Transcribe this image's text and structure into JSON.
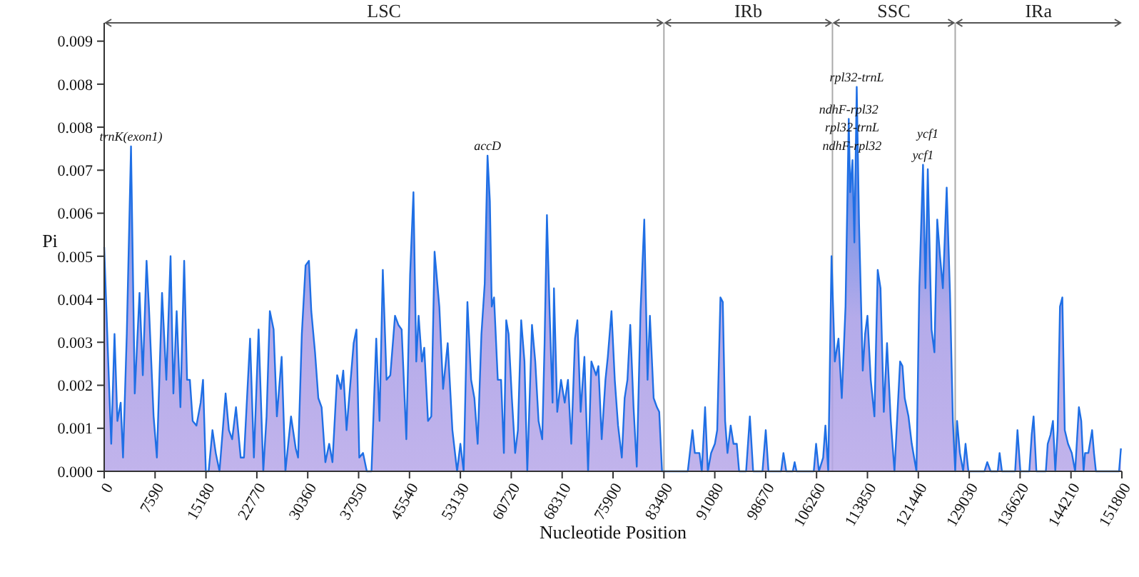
{
  "chart_data": {
    "type": "area",
    "xlabel": "Nucleotide Position",
    "ylabel": "Pi",
    "xlim": [
      0,
      151800
    ],
    "ylim": [
      0,
      0.0098
    ],
    "xticks": [
      0,
      7590,
      15180,
      22770,
      30360,
      37950,
      45540,
      53130,
      60720,
      68310,
      75900,
      83490,
      91080,
      98670,
      106260,
      113850,
      121440,
      129030,
      136620,
      144210,
      151800
    ],
    "yticks": [
      {
        "value": 0,
        "label": "0.000"
      },
      {
        "value": 0.00094,
        "label": "0.001"
      },
      {
        "value": 0.00188,
        "label": "0.002"
      },
      {
        "value": 0.00282,
        "label": "0.003"
      },
      {
        "value": 0.00376,
        "label": "0.004"
      },
      {
        "value": 0.0047,
        "label": "0.005"
      },
      {
        "value": 0.00564,
        "label": "0.006"
      },
      {
        "value": 0.00658,
        "label": "0.007"
      },
      {
        "value": 0.00752,
        "label": "0.008"
      },
      {
        "value": 0.00846,
        "label": "0.008"
      },
      {
        "value": 0.0094,
        "label": "0.009"
      }
    ],
    "grid": false,
    "ref_lines": [
      {
        "axis": "x",
        "value": 83490,
        "color": "#aaaaaa"
      },
      {
        "axis": "x",
        "value": 108630,
        "color": "#aaaaaa"
      },
      {
        "axis": "x",
        "value": 126940,
        "color": "#aaaaaa"
      }
    ],
    "annotations": [
      "LSC",
      "IRb",
      "SSC",
      "IRa",
      {
        "text": "trnK(exon1)",
        "x": 4000,
        "y": 0.0071
      },
      {
        "text": "accD",
        "x": 57180,
        "y": 0.0069
      },
      {
        "text": "rpl32-trnL",
        "x": 112250,
        "y": 0.0084
      },
      {
        "text": "ndhF-rpl32",
        "x": 111060,
        "y": 0.0077
      },
      {
        "text": "rpl32-trnL",
        "x": 111550,
        "y": 0.0073
      },
      {
        "text": "ndhF-rpl32",
        "x": 111550,
        "y": 0.0069
      },
      {
        "text": "ycf1",
        "x": 122140,
        "y": 0.0067
      },
      {
        "text": "ycf1",
        "x": 122850,
        "y": 0.0066
      }
    ],
    "series": [
      {
        "color": "#1f6fe5",
        "x": [
          0,
          700,
          1050,
          1540,
          1970,
          2460,
          2810,
          3370,
          4000,
          4560,
          5270,
          5760,
          6320,
          6670,
          7370,
          7860,
          8630,
          9270,
          9900,
          10320,
          10810,
          11370,
          11930,
          12360,
          12780,
          13200,
          13760,
          14390,
          14740,
          15160,
          15580,
          16150,
          16640,
          17200,
          18110,
          18600,
          19090,
          19660,
          20360,
          20850,
          21760,
          22330,
          23030,
          23730,
          24220,
          24710,
          25270,
          25760,
          26470,
          27030,
          27870,
          28570,
          28920,
          29480,
          30040,
          30540,
          30890,
          31450,
          31940,
          32430,
          32990,
          33560,
          34050,
          34750,
          35310,
          35660,
          36150,
          37210,
          37630,
          38050,
          38610,
          39170,
          39870,
          40580,
          41070,
          41560,
          42120,
          42680,
          43380,
          43880,
          44370,
          45070,
          45630,
          46130,
          46550,
          46900,
          47390,
          47740,
          48300,
          48790,
          49280,
          49990,
          50550,
          51240,
          51940,
          52640,
          53130,
          53620,
          54180,
          54730,
          55220,
          55710,
          56270,
          56760,
          57180,
          57530,
          57810,
          58150,
          58710,
          59200,
          59620,
          59970,
          60320,
          60810,
          61300,
          61710,
          62200,
          62690,
          63110,
          63810,
          64300,
          64790,
          65340,
          65690,
          66040,
          66460,
          66880,
          67090,
          67580,
          68140,
          68690,
          69180,
          69670,
          70230,
          70580,
          71070,
          71630,
          72180,
          72670,
          73370,
          73720,
          74210,
          74770,
          75120,
          75670,
          76160,
          76650,
          77210,
          77630,
          78050,
          78470,
          78960,
          79440,
          80000,
          80560,
          81050,
          81400,
          81960,
          82450,
          82790,
          83210,
          83490,
          87050,
          87750,
          88100,
          88790,
          89140,
          89630,
          90040,
          90530,
          91090,
          91440,
          91920,
          92270,
          92620,
          92970,
          93450,
          93870,
          94360,
          94710,
          95750,
          96310,
          96800,
          98190,
          98680,
          99090,
          100970,
          101320,
          101740,
          102710,
          102990,
          103270,
          105840,
          106190,
          106610,
          107240,
          107580,
          108000,
          108490,
          108980,
          109530,
          110020,
          110580,
          111060,
          111270,
          111620,
          111900,
          112250,
          112600,
          113150,
          113500,
          113850,
          114340,
          114890,
          115380,
          115800,
          116290,
          116770,
          117330,
          117880,
          118720,
          119070,
          119410,
          119970,
          120460,
          121160,
          121580,
          122140,
          122500,
          122850,
          123410,
          123840,
          124260,
          124680,
          125100,
          125670,
          126160,
          126590,
          126940,
          127220,
          127640,
          128130,
          128480,
          128910,
          131300,
          131720,
          132220,
          133280,
          133560,
          133910,
          135880,
          136230,
          136660,
          137990,
          138350,
          138630,
          139050,
          140460,
          140740,
          141160,
          141520,
          141870,
          142220,
          142570,
          142920,
          143280,
          143770,
          144330,
          144830,
          145390,
          145740,
          146090,
          146310,
          146800,
          147360,
          147640,
          147930,
          151380,
          151660
        ],
        "values": [
          0.0049,
          0.002,
          0.0006,
          0.003,
          0.0011,
          0.0015,
          0.0003,
          0.003,
          0.0071,
          0.0017,
          0.0039,
          0.0021,
          0.0046,
          0.0036,
          0.0012,
          0.0003,
          0.0039,
          0.002,
          0.0047,
          0.0017,
          0.0035,
          0.0014,
          0.0046,
          0.002,
          0.002,
          0.0011,
          0.001,
          0.0015,
          0.002,
          0,
          0,
          0.0009,
          0.0004,
          0,
          0.0017,
          0.0009,
          0.0007,
          0.0014,
          0.0003,
          0.0003,
          0.0029,
          0.0003,
          0.0031,
          0,
          0.0012,
          0.0035,
          0.0031,
          0.0012,
          0.0025,
          0,
          0.0012,
          0.0005,
          0.0003,
          0.003,
          0.0045,
          0.0046,
          0.0035,
          0.0026,
          0.0016,
          0.0014,
          0.0002,
          0.0006,
          0.0002,
          0.0021,
          0.0018,
          0.0022,
          0.0009,
          0.0028,
          0.0031,
          0.0003,
          0.0004,
          0,
          0,
          0.0029,
          0.0011,
          0.0044,
          0.002,
          0.0021,
          0.0034,
          0.0032,
          0.0031,
          0.0007,
          0.0043,
          0.0061,
          0.0024,
          0.0034,
          0.0024,
          0.0027,
          0.0011,
          0.0012,
          0.0048,
          0.0036,
          0.0018,
          0.0028,
          0.0009,
          0,
          0.0006,
          0,
          0.0037,
          0.002,
          0.0016,
          0.0006,
          0.003,
          0.0041,
          0.0069,
          0.0059,
          0.0036,
          0.0038,
          0.002,
          0.002,
          0.0004,
          0.0033,
          0.003,
          0.0016,
          0.0004,
          0.0009,
          0.0033,
          0.0024,
          0,
          0.0032,
          0.0024,
          0.0011,
          0.0007,
          0.0028,
          0.0056,
          0.0034,
          0.0015,
          0.004,
          0.0013,
          0.002,
          0.0015,
          0.002,
          0.0006,
          0.0029,
          0.0033,
          0.0013,
          0.0025,
          0,
          0.0024,
          0.0021,
          0.0023,
          0.0007,
          0.002,
          0.0025,
          0.0035,
          0.002,
          0.001,
          0.0003,
          0.0016,
          0.002,
          0.0032,
          0.0014,
          0.0001,
          0.0035,
          0.0055,
          0.002,
          0.0034,
          0.0016,
          0.0014,
          0.0013,
          0,
          0,
          0,
          0.0009,
          0.0004,
          0.0004,
          0,
          0.0014,
          0,
          0.0004,
          0.0006,
          0.0009,
          0.0038,
          0.0037,
          0.0011,
          0.0004,
          0.001,
          0.0006,
          0.0006,
          0,
          0,
          0.0012,
          0,
          0,
          0.0009,
          0,
          0,
          0.0004,
          0,
          0,
          0.0002,
          0,
          0,
          0.0006,
          0,
          0.0003,
          0.001,
          0,
          0.0047,
          0.0024,
          0.0029,
          0.0016,
          0.0036,
          0.0077,
          0.0061,
          0.0068,
          0.005,
          0.0084,
          0.0054,
          0.0022,
          0.003,
          0.0034,
          0.002,
          0.0012,
          0.0044,
          0.004,
          0.0013,
          0.0028,
          0.0011,
          0,
          0.0024,
          0.0023,
          0.0016,
          0.0012,
          0.0006,
          0,
          0.004,
          0.0067,
          0.004,
          0.0066,
          0.0031,
          0.0026,
          0.0055,
          0.0047,
          0.004,
          0.0062,
          0.0039,
          0.0011,
          0,
          0.0011,
          0.0004,
          0,
          0.0006,
          0,
          0,
          0.0002,
          0,
          0,
          0.0004,
          0,
          0,
          0.0009,
          0,
          0,
          0.0008,
          0.0012,
          0,
          0,
          0.0006,
          0.0008,
          0.0011,
          0,
          0.0009,
          0.0036,
          0.0038,
          0.0009,
          0.0006,
          0.0004,
          0,
          0.0014,
          0.0011,
          0,
          0.0004,
          0.0004,
          0.0009,
          0.0004,
          0,
          0,
          0.0005
        ]
      }
    ]
  }
}
